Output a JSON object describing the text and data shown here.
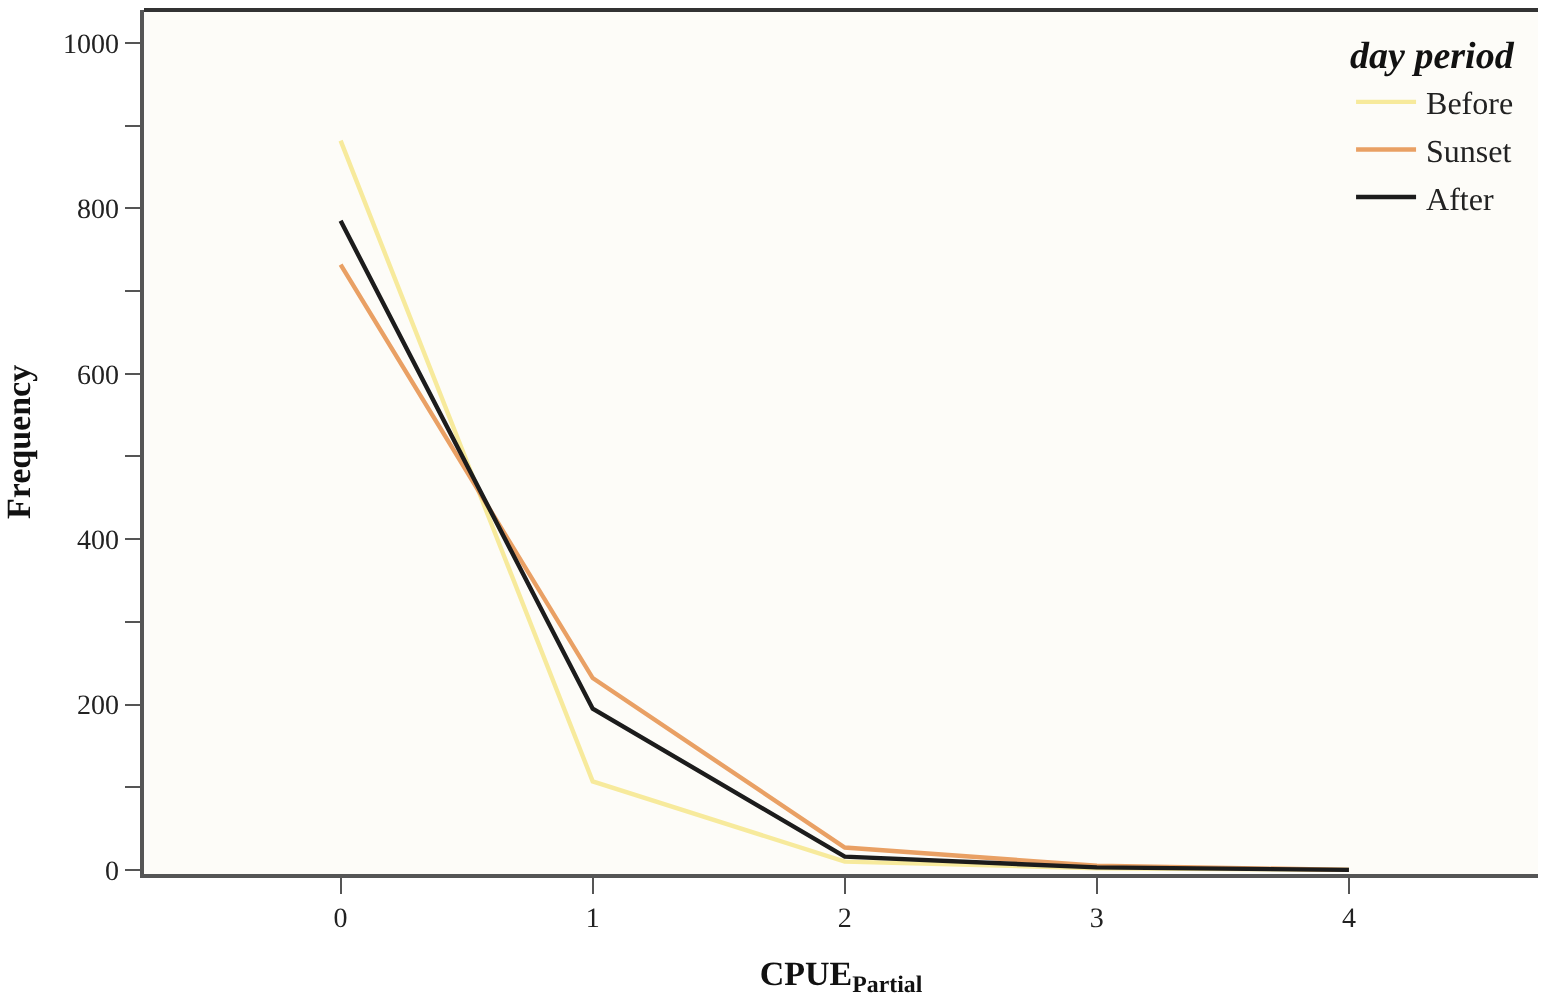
{
  "chart_data": {
    "type": "line",
    "xlabel": "CPUE$_{Partial}$",
    "ylabel": "Frequency",
    "legend_title": "day period",
    "x": [
      0,
      1,
      2,
      3,
      4
    ],
    "series": [
      {
        "name": "Before",
        "color": "#f7ea9c",
        "values": [
          882,
          107,
          10,
          2,
          0
        ]
      },
      {
        "name": "Sunset",
        "color": "#e9a064",
        "values": [
          732,
          232,
          27,
          5,
          0
        ]
      },
      {
        "name": "After",
        "color": "#1c1c1c",
        "values": [
          785,
          195,
          16,
          3,
          0
        ]
      }
    ],
    "xlim": [
      -0.78,
      4.75
    ],
    "xticks": [
      0,
      1,
      2,
      3,
      4
    ],
    "ylim": [
      -5,
      1040
    ],
    "yticks": [
      0,
      {
        "value": 100,
        "label": null
      },
      200,
      {
        "value": 300,
        "label": null
      },
      400,
      {
        "value": 500,
        "label": null
      },
      600,
      {
        "value": 700,
        "label": null
      },
      800,
      {
        "value": 900,
        "label": null
      },
      1000
    ],
    "grid": false,
    "legend": "top right",
    "marker": "none",
    "line_style": "solid"
  }
}
